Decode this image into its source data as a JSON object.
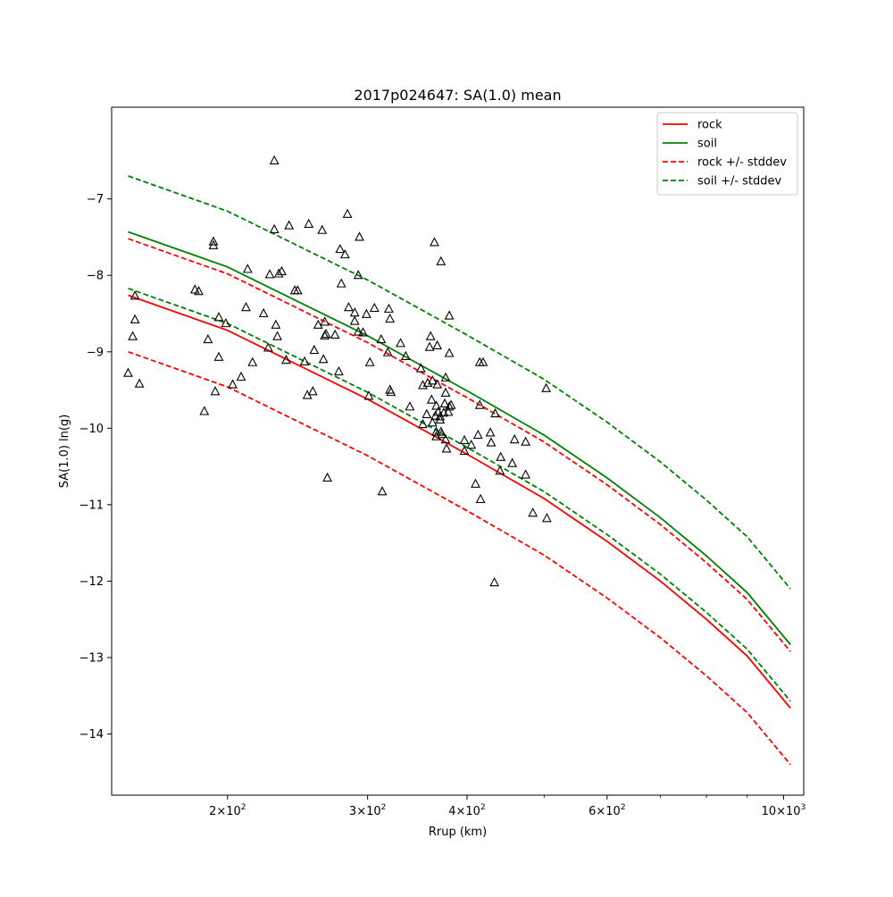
{
  "chart_data": {
    "type": "scatter",
    "title": "2017p024647: SA(1.0) mean",
    "xlabel": "Rrup (km)",
    "ylabel": "SA(1.0) ln(g)",
    "xscale": "log",
    "xlim": [
      143,
      1060
    ],
    "ylim": [
      -14.8,
      -5.8
    ],
    "grid": false,
    "legend_position": "top-right",
    "x_ticks": [
      {
        "value": 200,
        "base": "2",
        "exp": "2"
      },
      {
        "value": 300,
        "base": "3",
        "exp": "2"
      },
      {
        "value": 400,
        "base": "4",
        "exp": "2"
      },
      {
        "value": 600,
        "base": "6",
        "exp": "2"
      },
      {
        "value": 1000,
        "base": "10",
        "exp": "3"
      }
    ],
    "x_minor_ticks": [
      500,
      700,
      800,
      900
    ],
    "y_ticks": [
      {
        "value": -7,
        "label": "−7"
      },
      {
        "value": -8,
        "label": "−8"
      },
      {
        "value": -9,
        "label": "−9"
      },
      {
        "value": -10,
        "label": "−10"
      },
      {
        "value": -11,
        "label": "−11"
      },
      {
        "value": -12,
        "label": "−12"
      },
      {
        "value": -13,
        "label": "−13"
      },
      {
        "value": -14,
        "label": "−14"
      }
    ],
    "lines": [
      {
        "name": "rock",
        "color": "#ff0000",
        "dash": "solid",
        "x": [
          150,
          200,
          300,
          400,
          500,
          600,
          700,
          800,
          900,
          1020
        ],
        "y": [
          -8.26,
          -8.72,
          -9.62,
          -10.34,
          -10.92,
          -11.48,
          -12.0,
          -12.5,
          -12.98,
          -13.66
        ]
      },
      {
        "name": "soil",
        "color": "#008000",
        "dash": "solid",
        "x": [
          150,
          200,
          300,
          400,
          500,
          600,
          700,
          800,
          900,
          1020
        ],
        "y": [
          -7.43,
          -7.89,
          -8.79,
          -9.51,
          -10.09,
          -10.65,
          -11.17,
          -11.67,
          -12.15,
          -12.83
        ]
      },
      {
        "name": "rock +/- stddev",
        "color": "#ff0000",
        "dash": "dashed",
        "x": [
          150,
          200,
          300,
          400,
          500,
          600,
          700,
          800,
          900,
          1020
        ],
        "y": [
          -7.52,
          -7.98,
          -8.88,
          -9.6,
          -10.18,
          -10.74,
          -11.26,
          -11.76,
          -12.24,
          -12.92
        ]
      },
      {
        "name": "",
        "color": "#ff0000",
        "dash": "dashed",
        "x": [
          150,
          200,
          300,
          400,
          500,
          600,
          700,
          800,
          900,
          1020
        ],
        "y": [
          -9.0,
          -9.46,
          -10.36,
          -11.08,
          -11.66,
          -12.22,
          -12.74,
          -13.24,
          -13.72,
          -14.4
        ]
      },
      {
        "name": "soil +/- stddev",
        "color": "#008000",
        "dash": "dashed",
        "x": [
          150,
          200,
          300,
          400,
          500,
          600,
          700,
          800,
          900,
          1020
        ],
        "y": [
          -6.7,
          -7.16,
          -8.06,
          -8.78,
          -9.36,
          -9.92,
          -10.44,
          -10.94,
          -11.42,
          -12.1
        ]
      },
      {
        "name": "",
        "color": "#008000",
        "dash": "dashed",
        "x": [
          150,
          200,
          300,
          400,
          500,
          600,
          700,
          800,
          900,
          1020
        ],
        "y": [
          -8.17,
          -8.63,
          -9.53,
          -10.25,
          -10.83,
          -11.39,
          -11.91,
          -12.41,
          -12.89,
          -13.57
        ]
      }
    ],
    "observations": {
      "marker": "triangle",
      "color": "#000000",
      "points": [
        [
          150,
          -9.28
        ],
        [
          152,
          -8.8
        ],
        [
          153,
          -8.58
        ],
        [
          153,
          -8.27
        ],
        [
          155,
          -9.42
        ],
        [
          182,
          -8.19
        ],
        [
          184,
          -8.21
        ],
        [
          187,
          -9.78
        ],
        [
          189,
          -8.84
        ],
        [
          192,
          -7.56
        ],
        [
          192,
          -7.61
        ],
        [
          193,
          -9.52
        ],
        [
          195,
          -8.55
        ],
        [
          195,
          -9.07
        ],
        [
          199,
          -8.63
        ],
        [
          203,
          -9.43
        ],
        [
          208,
          -9.33
        ],
        [
          211,
          -8.42
        ],
        [
          212,
          -7.92
        ],
        [
          215,
          -9.14
        ],
        [
          222,
          -8.5
        ],
        [
          225,
          -8.95
        ],
        [
          226,
          -7.99
        ],
        [
          229,
          -6.5
        ],
        [
          229,
          -7.4
        ],
        [
          230,
          -8.65
        ],
        [
          231,
          -8.8
        ],
        [
          232,
          -7.98
        ],
        [
          234,
          -7.95
        ],
        [
          237,
          -9.11
        ],
        [
          239,
          -7.35
        ],
        [
          243,
          -8.2
        ],
        [
          245,
          -8.2
        ],
        [
          250,
          -9.13
        ],
        [
          252,
          -9.57
        ],
        [
          253,
          -7.33
        ],
        [
          256,
          -9.52
        ],
        [
          257,
          -8.98
        ],
        [
          260,
          -8.65
        ],
        [
          263,
          -7.41
        ],
        [
          264,
          -9.1
        ],
        [
          265,
          -8.79
        ],
        [
          266,
          -8.77
        ],
        [
          265,
          -8.61
        ],
        [
          267,
          -10.65
        ],
        [
          273,
          -8.78
        ],
        [
          276,
          -9.26
        ],
        [
          277,
          -7.66
        ],
        [
          278,
          -8.11
        ],
        [
          281,
          -7.73
        ],
        [
          283,
          -7.2
        ],
        [
          284,
          -8.42
        ],
        [
          289,
          -8.49
        ],
        [
          289,
          -8.6
        ],
        [
          292,
          -8.74
        ],
        [
          292,
          -8.0
        ],
        [
          293,
          -7.5
        ],
        [
          296,
          -8.75
        ],
        [
          299,
          -8.51
        ],
        [
          301,
          -9.58
        ],
        [
          302,
          -9.14
        ],
        [
          306,
          -8.43
        ],
        [
          312,
          -8.84
        ],
        [
          313,
          -10.83
        ],
        [
          318,
          -9.01
        ],
        [
          319,
          -8.44
        ],
        [
          320,
          -9.5
        ],
        [
          320,
          -8.57
        ],
        [
          321,
          -9.53
        ],
        [
          330,
          -8.89
        ],
        [
          335,
          -9.06
        ],
        [
          339,
          -9.72
        ],
        [
          350,
          -9.22
        ],
        [
          352,
          -9.44
        ],
        [
          352,
          -9.95
        ],
        [
          356,
          -9.82
        ],
        [
          357,
          -9.41
        ],
        [
          359,
          -8.94
        ],
        [
          360,
          -8.8
        ],
        [
          361,
          -9.63
        ],
        [
          362,
          -9.38
        ],
        [
          362,
          -9.93
        ],
        [
          364,
          -7.57
        ],
        [
          365,
          -9.84
        ],
        [
          366,
          -9.71
        ],
        [
          366,
          -10.05
        ],
        [
          366,
          -10.11
        ],
        [
          367,
          -9.43
        ],
        [
          367,
          -8.92
        ],
        [
          368,
          -9.79
        ],
        [
          370,
          -9.85
        ],
        [
          370,
          -9.89
        ],
        [
          371,
          -10.05
        ],
        [
          371,
          -7.82
        ],
        [
          372,
          -10.08
        ],
        [
          374,
          -9.8
        ],
        [
          375,
          -9.68
        ],
        [
          376,
          -9.34
        ],
        [
          376,
          -10.15
        ],
        [
          376,
          -9.54
        ],
        [
          377,
          -10.27
        ],
        [
          379,
          -9.79
        ],
        [
          380,
          -9.72
        ],
        [
          380,
          -9.02
        ],
        [
          380,
          -8.53
        ],
        [
          382,
          -9.7
        ],
        [
          397,
          -10.16
        ],
        [
          397,
          -10.3
        ],
        [
          405,
          -10.22
        ],
        [
          410,
          -10.73
        ],
        [
          413,
          -10.09
        ],
        [
          415,
          -9.7
        ],
        [
          415,
          -9.14
        ],
        [
          416,
          -10.93
        ],
        [
          419,
          -9.14
        ],
        [
          428,
          -10.06
        ],
        [
          429,
          -10.19
        ],
        [
          433,
          -12.02
        ],
        [
          434,
          -9.81
        ],
        [
          440,
          -10.56
        ],
        [
          441,
          -10.38
        ],
        [
          456,
          -10.46
        ],
        [
          459,
          -10.15
        ],
        [
          474,
          -10.18
        ],
        [
          474,
          -10.61
        ],
        [
          484,
          -11.11
        ],
        [
          503,
          -9.48
        ],
        [
          504,
          -11.18
        ]
      ]
    }
  }
}
